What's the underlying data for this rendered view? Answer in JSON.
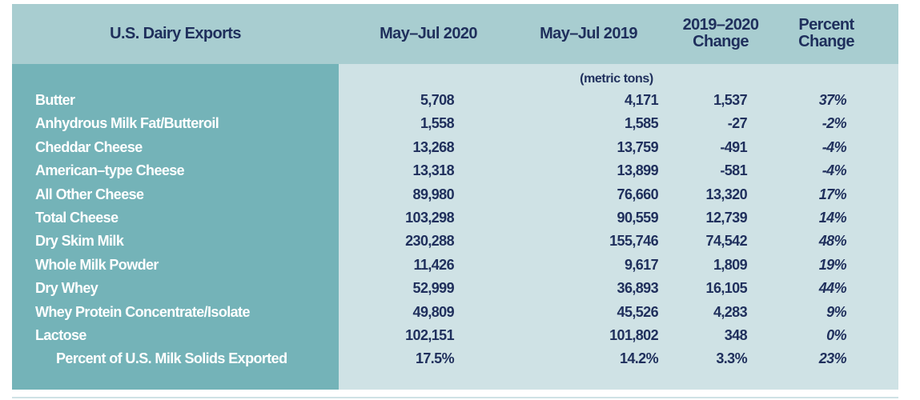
{
  "table": {
    "headers": [
      "U.S. Dairy Exports",
      "May–Jul 2020",
      "May–Jul 2019",
      "2019–2020 Change",
      "Percent Change"
    ],
    "header_lines": {
      "change": [
        "2019–2020",
        "Change"
      ],
      "percent": [
        "Percent",
        "Change"
      ]
    },
    "units": "(metric tons)",
    "rows": [
      {
        "label": "Butter",
        "y2020": "5,708",
        "y2019": "4,171",
        "change": "1,537",
        "pct": "37%"
      },
      {
        "label": "Anhydrous Milk Fat/Butteroil",
        "y2020": "1,558",
        "y2019": "1,585",
        "change": "-27",
        "pct": "-2%"
      },
      {
        "label": "Cheddar Cheese",
        "y2020": "13,268",
        "y2019": "13,759",
        "change": "-491",
        "pct": "-4%"
      },
      {
        "label": "American–type Cheese",
        "y2020": "13,318",
        "y2019": "13,899",
        "change": "-581",
        "pct": "-4%"
      },
      {
        "label": "All Other Cheese",
        "y2020": "89,980",
        "y2019": "76,660",
        "change": "13,320",
        "pct": "17%"
      },
      {
        "label": "Total Cheese",
        "y2020": "103,298",
        "y2019": "90,559",
        "change": "12,739",
        "pct": "14%"
      },
      {
        "label": "Dry Skim Milk",
        "y2020": "230,288",
        "y2019": "155,746",
        "change": "74,542",
        "pct": "48%"
      },
      {
        "label": "Whole Milk Powder",
        "y2020": "11,426",
        "y2019": "9,617",
        "change": "1,809",
        "pct": "19%"
      },
      {
        "label": "Dry Whey",
        "y2020": "52,999",
        "y2019": "36,893",
        "change": "16,105",
        "pct": "44%"
      },
      {
        "label": "Whey Protein Concentrate/Isolate",
        "y2020": "49,809",
        "y2019": "45,526",
        "change": "4,283",
        "pct": "9%"
      },
      {
        "label": "Lactose",
        "y2020": "102,151",
        "y2019": "101,802",
        "change": "348",
        "pct": "0%"
      },
      {
        "label": "Percent of U.S. Milk Solids Exported",
        "y2020": "17.5%",
        "y2019": "14.2%",
        "change": "3.3%",
        "pct": "23%",
        "indent": true
      }
    ]
  },
  "colors": {
    "header_bg": "#a8cdd0",
    "label_col_bg": "#74b3b8",
    "body_bg": "#cfe2e5",
    "text": "#1f2f5c"
  }
}
